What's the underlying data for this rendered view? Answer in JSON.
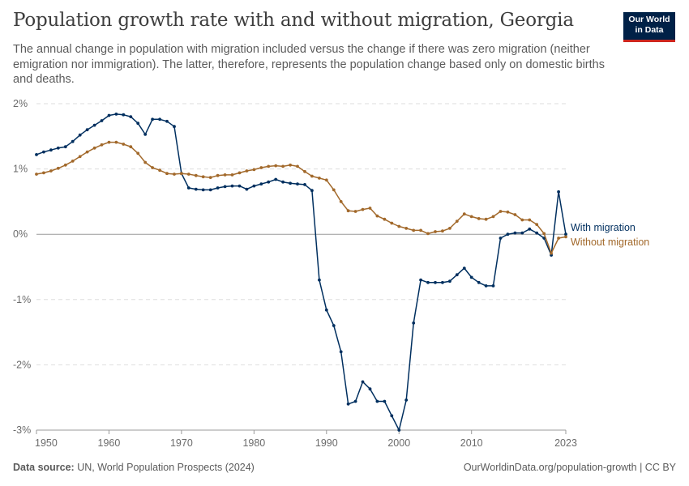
{
  "header": {
    "title": "Population growth rate with and without migration, Georgia",
    "subtitle": "The annual change in population with migration included versus the change if there was zero migration (neither emigration nor immigration). The latter, therefore, represents the population change based only on domestic births and deaths.",
    "logo_line1": "Our World",
    "logo_line2": "in Data"
  },
  "footer": {
    "source_label": "Data source:",
    "source_text": "UN, World Population Prospects (2024)",
    "link_text": "OurWorldinData.org/population-growth | CC BY"
  },
  "colors": {
    "with_migration": "#002f5f",
    "without_migration": "#a2692b",
    "grid": "#dddddd",
    "zero_line": "#9a9a9a",
    "logo_bg": "#002147",
    "logo_accent": "#ce261e"
  },
  "chart_data": {
    "type": "line",
    "title": "Population growth rate with and without migration, Georgia",
    "xlim": [
      1950,
      2023
    ],
    "ylim": [
      -3,
      2
    ],
    "x_ticks": [
      1950,
      1960,
      1970,
      1980,
      1990,
      2000,
      2010,
      2023
    ],
    "x_tick_labels": [
      "1950",
      "1960",
      "1970",
      "1980",
      "1990",
      "2000",
      "2010",
      "2023"
    ],
    "y_ticks": [
      -3,
      -2,
      -1,
      0,
      1,
      2
    ],
    "y_tick_labels": [
      "-3%",
      "-2%",
      "-1%",
      "0%",
      "1%",
      "2%"
    ],
    "grid": "horizontal dashed",
    "legend": "end-of-line labels, right",
    "x": [
      1950,
      1951,
      1952,
      1953,
      1954,
      1955,
      1956,
      1957,
      1958,
      1959,
      1960,
      1961,
      1962,
      1963,
      1964,
      1965,
      1966,
      1967,
      1968,
      1969,
      1970,
      1971,
      1972,
      1973,
      1974,
      1975,
      1976,
      1977,
      1978,
      1979,
      1980,
      1981,
      1982,
      1983,
      1984,
      1985,
      1986,
      1987,
      1988,
      1989,
      1990,
      1991,
      1992,
      1993,
      1994,
      1995,
      1996,
      1997,
      1998,
      1999,
      2000,
      2001,
      2002,
      2003,
      2004,
      2005,
      2006,
      2007,
      2008,
      2009,
      2010,
      2011,
      2012,
      2013,
      2014,
      2015,
      2016,
      2017,
      2018,
      2019,
      2020,
      2021,
      2022,
      2023
    ],
    "series": [
      {
        "name": "With migration",
        "color": "#002f5f",
        "values": [
          1.22,
          1.26,
          1.29,
          1.32,
          1.34,
          1.42,
          1.52,
          1.6,
          1.67,
          1.74,
          1.82,
          1.84,
          1.83,
          1.8,
          1.7,
          1.53,
          1.76,
          1.76,
          1.73,
          1.65,
          0.93,
          0.71,
          0.69,
          0.68,
          0.68,
          0.71,
          0.73,
          0.74,
          0.74,
          0.69,
          0.74,
          0.77,
          0.8,
          0.84,
          0.8,
          0.78,
          0.77,
          0.76,
          0.67,
          -0.7,
          -1.16,
          -1.4,
          -1.8,
          -2.6,
          -2.56,
          -2.26,
          -2.37,
          -2.56,
          -2.56,
          -2.78,
          -3.0,
          -2.54,
          -1.36,
          -0.7,
          -0.74,
          -0.74,
          -0.74,
          -0.72,
          -0.62,
          -0.52,
          -0.66,
          -0.74,
          -0.79,
          -0.79,
          -0.06,
          0.0,
          0.02,
          0.02,
          0.08,
          0.02,
          -0.06,
          -0.32,
          0.65,
          0.0
        ]
      },
      {
        "name": "Without migration",
        "color": "#a2692b",
        "values": [
          0.92,
          0.94,
          0.97,
          1.01,
          1.06,
          1.12,
          1.19,
          1.26,
          1.32,
          1.37,
          1.41,
          1.41,
          1.38,
          1.34,
          1.24,
          1.1,
          1.02,
          0.98,
          0.93,
          0.92,
          0.93,
          0.92,
          0.9,
          0.88,
          0.87,
          0.9,
          0.91,
          0.91,
          0.94,
          0.97,
          0.99,
          1.02,
          1.04,
          1.05,
          1.04,
          1.06,
          1.04,
          0.96,
          0.89,
          0.86,
          0.83,
          0.68,
          0.5,
          0.36,
          0.35,
          0.38,
          0.4,
          0.28,
          0.23,
          0.17,
          0.12,
          0.09,
          0.06,
          0.06,
          0.01,
          0.04,
          0.05,
          0.09,
          0.2,
          0.31,
          0.27,
          0.24,
          0.23,
          0.27,
          0.35,
          0.34,
          0.3,
          0.22,
          0.22,
          0.15,
          0.01,
          -0.29,
          -0.06,
          -0.04
        ]
      }
    ]
  }
}
